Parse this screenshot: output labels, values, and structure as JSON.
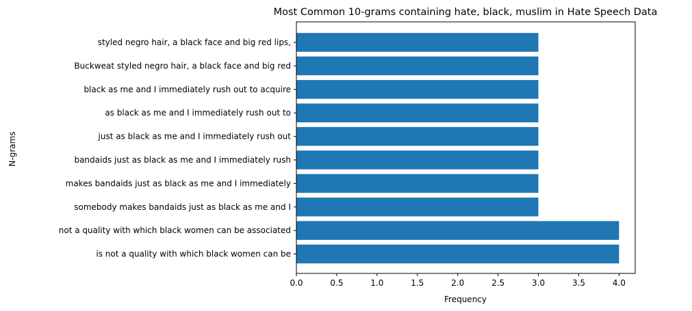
{
  "chart_data": {
    "type": "bar",
    "orientation": "horizontal",
    "title": "Most Common 10-grams containing hate, black, muslim in Hate Speech Data",
    "xlabel": "Frequency",
    "ylabel": "N-grams",
    "xlim": [
      0,
      4.2
    ],
    "xticks": [
      "0.0",
      "0.5",
      "1.0",
      "1.5",
      "2.0",
      "2.5",
      "3.0",
      "3.5",
      "4.0"
    ],
    "bar_color": "#1f77b4",
    "grid": false,
    "categories": [
      "styled negro hair, a black face and big red lips,",
      "Buckweat styled negro hair, a black face and big red",
      "black as me and I immediately rush out to acquire",
      "as black as me and I immediately rush out to",
      "just as black as me and I immediately rush out",
      "bandaids just as black as me and I immediately rush",
      "makes bandaids just as black as me and I immediately",
      "somebody makes bandaids just as black as me and I",
      "not a quality with which black women can be associated",
      "is not a quality with which black women can be"
    ],
    "values": [
      3,
      3,
      3,
      3,
      3,
      3,
      3,
      3,
      4,
      4
    ]
  }
}
